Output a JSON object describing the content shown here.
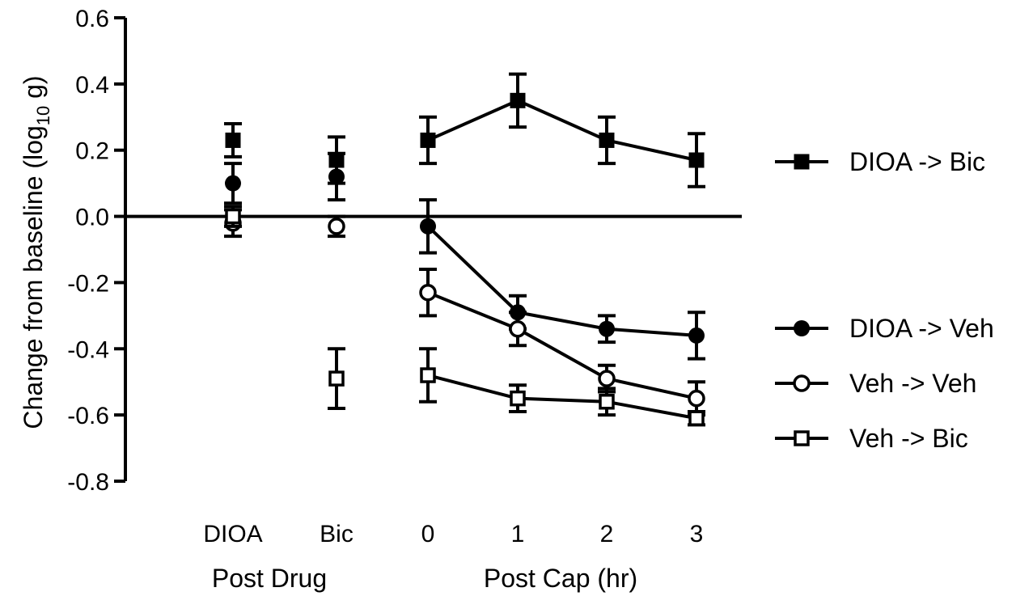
{
  "chart_data": {
    "type": "line",
    "xlabel_groups": [
      "Post Drug",
      "Post Cap (hr)"
    ],
    "ylabel": {
      "main": "Change from baseline (log",
      "sub": "10",
      "rest": " g)"
    },
    "categories": [
      "DIOA",
      "Bic",
      "0",
      "1",
      "2",
      "3"
    ],
    "ylim": [
      -0.8,
      0.6
    ],
    "yticks": [
      0.6,
      0.4,
      0.2,
      0.0,
      -0.2,
      -0.4,
      -0.6,
      -0.8
    ],
    "ytick_labels": [
      "0.6",
      "0.4",
      "0.2",
      "0.0",
      "-0.2",
      "-0.4",
      "-0.6",
      "-0.8"
    ],
    "series": [
      {
        "name": "DIOA -> Bic",
        "marker": "filled-square",
        "values": [
          0.23,
          0.17,
          0.23,
          0.35,
          0.23,
          0.17
        ],
        "errors": [
          0.05,
          0.07,
          0.07,
          0.08,
          0.07,
          0.08
        ]
      },
      {
        "name": "DIOA -> Veh",
        "marker": "filled-circle",
        "values": [
          0.1,
          0.12,
          -0.03,
          -0.29,
          -0.34,
          -0.36
        ],
        "errors": [
          0.06,
          0.07,
          0.08,
          0.05,
          0.04,
          0.07
        ]
      },
      {
        "name": "Veh -> Veh",
        "marker": "open-circle",
        "values": [
          -0.02,
          -0.03,
          -0.23,
          -0.34,
          -0.49,
          -0.55
        ],
        "errors": [
          0.04,
          0.03,
          0.07,
          0.05,
          0.04,
          0.05
        ]
      },
      {
        "name": "Veh -> Bic",
        "marker": "open-square",
        "values": [
          0.0,
          -0.49,
          -0.48,
          -0.55,
          -0.56,
          -0.61
        ],
        "errors": [
          0.03,
          0.09,
          0.08,
          0.04,
          0.04,
          0.02
        ]
      }
    ]
  }
}
